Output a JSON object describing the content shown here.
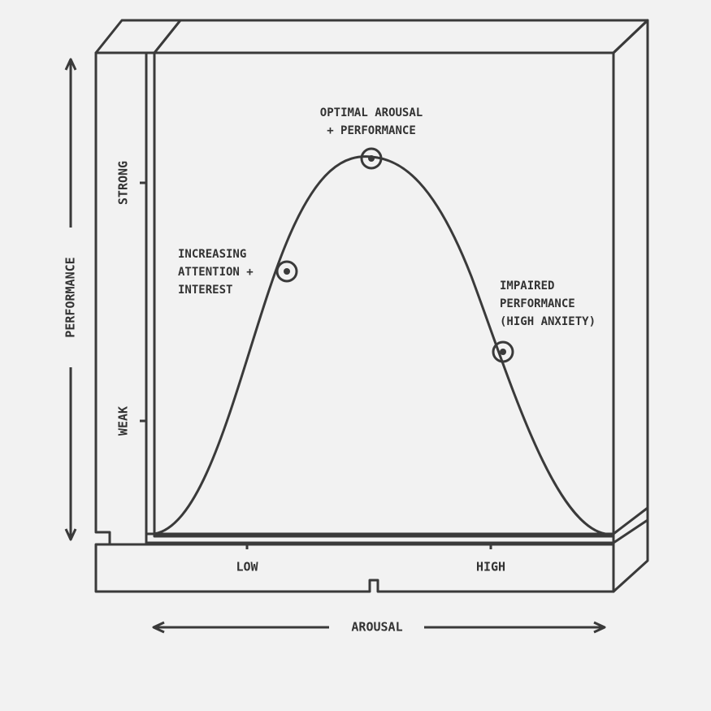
{
  "y_axis": {
    "title": "PERFORMANCE",
    "ticks": [
      "STRONG",
      "WEAK"
    ]
  },
  "x_axis": {
    "title": "AROUSAL",
    "ticks": [
      "LOW",
      "HIGH"
    ]
  },
  "annotations": [
    {
      "lines": [
        "OPTIMAL AROUSAL",
        "+ PERFORMANCE"
      ]
    },
    {
      "lines": [
        "INCREASING",
        "ATTENTION +",
        "INTEREST"
      ]
    },
    {
      "lines": [
        "IMPAIRED",
        "PERFORMANCE",
        "(HIGH ANXIETY)"
      ]
    }
  ]
}
